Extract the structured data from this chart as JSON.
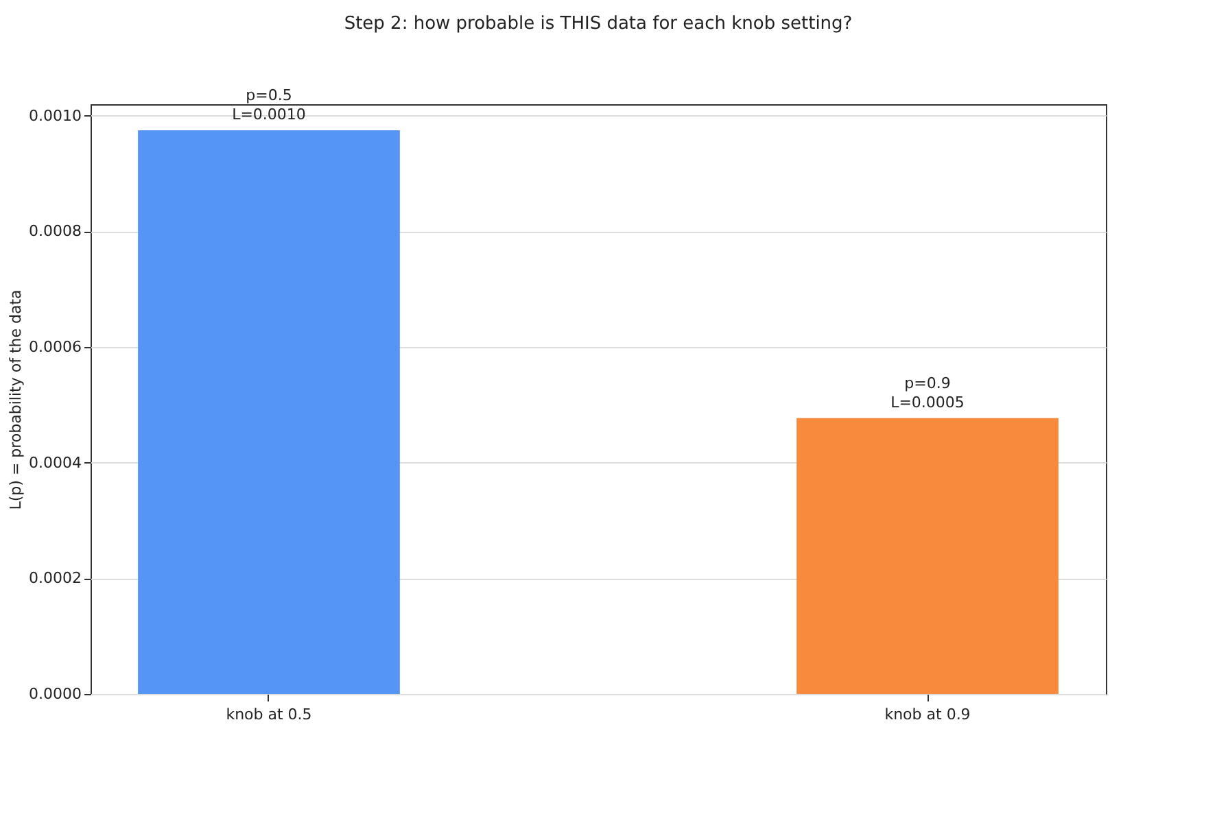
{
  "chart_data": {
    "type": "bar",
    "title": "Step 2: how probable is THIS data for each knob setting?",
    "ylabel": "L(p) = probability of the data",
    "categories": [
      "knob at 0.5",
      "knob at 0.9"
    ],
    "values": [
      0.000975,
      0.000477
    ],
    "colors": [
      "#5595f5",
      "#f78a3c"
    ],
    "value_labels": [
      "p=0.5\nL=0.0010",
      "p=0.9\nL=0.0005"
    ],
    "ylim": [
      0,
      0.00102
    ],
    "yticks": [
      {
        "value": 0,
        "label": "0.0000"
      },
      0.0002,
      0.0004,
      0.0006,
      0.0008,
      {
        "value": 0.001,
        "label": "0.0010"
      }
    ],
    "grid": "y"
  }
}
